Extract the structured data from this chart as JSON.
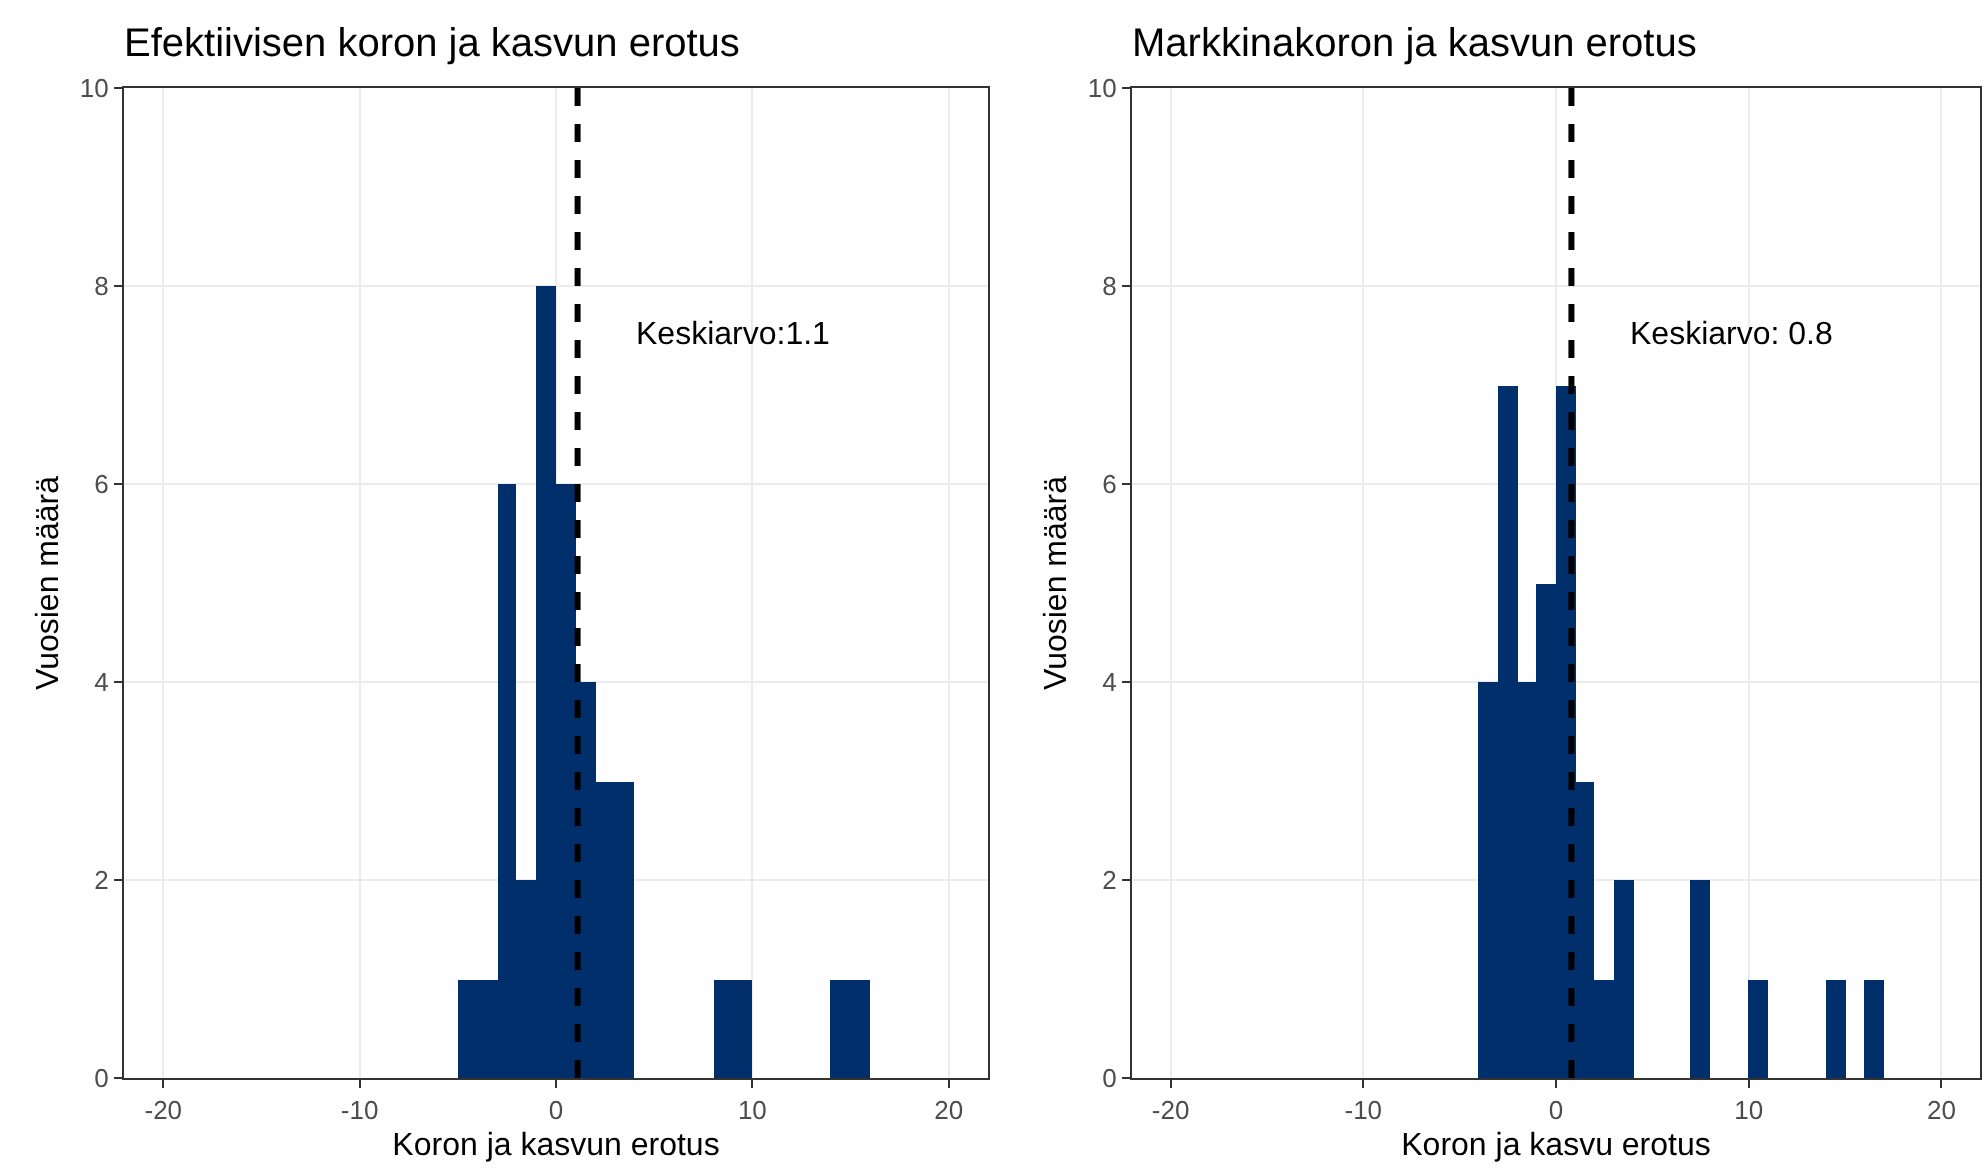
{
  "chart_data": [
    {
      "type": "histogram",
      "title": "Efektiivisen koron ja kasvun erotus",
      "xlabel": "Koron ja kasvun erotus",
      "ylabel": "Vuosien määrä",
      "color": "#002f6c",
      "bins": [
        -5,
        -4,
        -3,
        -2,
        -1,
        0,
        1,
        2,
        3,
        4,
        5,
        6,
        7,
        8,
        9,
        10,
        11,
        12,
        13,
        14,
        15,
        16
      ],
      "values": [
        1,
        1,
        6,
        2,
        8,
        6,
        4,
        3,
        3,
        0,
        0,
        0,
        0,
        1,
        1,
        0,
        0,
        0,
        0,
        1,
        1
      ],
      "xlim": [
        -22,
        22
      ],
      "xticks": [
        -20,
        -10,
        0,
        10,
        20
      ],
      "ylim": [
        0,
        10
      ],
      "yticks": [
        0,
        2,
        4,
        6,
        8,
        10
      ],
      "grid": true,
      "ref_lines": [
        {
          "axis": "x",
          "value": 1.1,
          "label": "Keskiarvo:1.1",
          "color": "#000000",
          "line_style": "dashed"
        }
      ]
    },
    {
      "type": "histogram",
      "title": "Markkinakoron ja kasvun erotus",
      "xlabel": "Koron ja kasvu erotus",
      "ylabel": "Vuosien määrä",
      "color": "#002f6c",
      "bins": [
        -4,
        -3,
        -2,
        -1,
        0,
        1,
        2,
        3,
        4,
        5,
        6,
        7,
        8,
        9,
        10,
        11,
        12,
        13,
        14,
        15,
        16,
        17
      ],
      "values": [
        4,
        7,
        4,
        5,
        7,
        3,
        1,
        2,
        0,
        0,
        0,
        2,
        0,
        0,
        1,
        0,
        0,
        0,
        1,
        0,
        1
      ],
      "xlim": [
        -22,
        22
      ],
      "xticks": [
        -20,
        -10,
        0,
        10,
        20
      ],
      "ylim": [
        0,
        10
      ],
      "yticks": [
        0,
        2,
        4,
        6,
        8,
        10
      ],
      "grid": true,
      "ref_lines": [
        {
          "axis": "x",
          "value": 0.8,
          "label": "Keskiarvo: 0.8",
          "color": "#000000",
          "line_style": "dashed"
        }
      ]
    }
  ]
}
